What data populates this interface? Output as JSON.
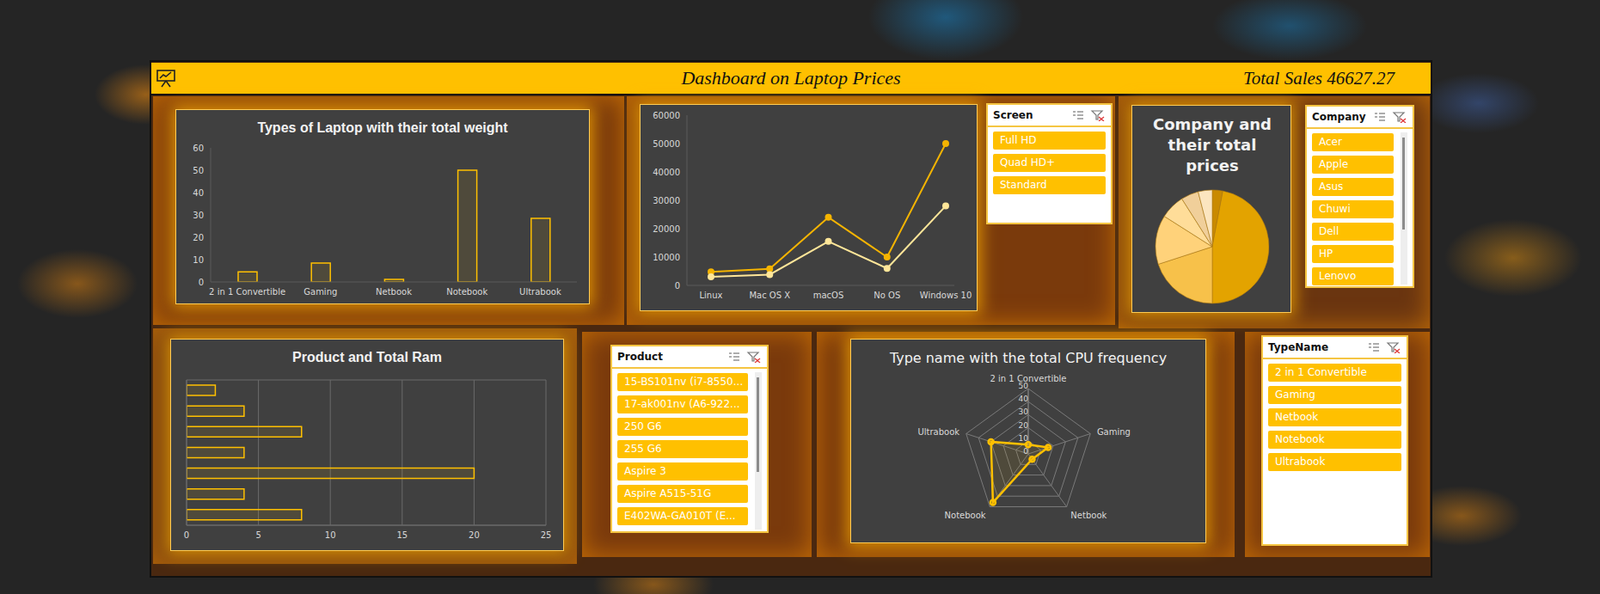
{
  "header": {
    "title": "Dashboard on Laptop Prices",
    "kpi": {
      "label": "Total Sales",
      "value": 46627.27
    }
  },
  "chart_data": [
    {
      "type": "bar",
      "title": "Types of Laptop with their total weight",
      "categories": [
        "2 in 1 Convertible",
        "Gaming",
        "Netbook",
        "Notebook",
        "Ultrabook"
      ],
      "values": [
        4.5,
        8.5,
        1.2,
        50,
        28.5
      ],
      "color": "#ffc000",
      "ylim": [
        0,
        60
      ],
      "yticks": [
        0,
        10,
        20,
        30,
        40,
        50,
        60
      ],
      "grid": false
    },
    {
      "type": "line",
      "categories": [
        "Linux",
        "Mac OS X",
        "macOS",
        "No OS",
        "Windows 10"
      ],
      "series": [
        {
          "color": "#f5b400",
          "values": [
            4800,
            5800,
            24000,
            10000,
            50000
          ]
        },
        {
          "color": "#ffe699",
          "values": [
            3000,
            3800,
            15500,
            6000,
            28000
          ]
        }
      ],
      "ylim": [
        0,
        60000
      ],
      "yticks": [
        0,
        10000,
        20000,
        30000,
        40000,
        50000,
        60000
      ],
      "marker": "circle",
      "grid": false
    },
    {
      "type": "pie",
      "title": "Company and their total prices",
      "values": [
        3,
        47,
        20,
        14,
        7,
        5,
        4
      ],
      "colors": [
        "#c98a00",
        "#e3a300",
        "#f7c14a",
        "#ffd27a",
        "#ffdd99",
        "#f0cf9a",
        "#fbe5bf"
      ]
    },
    {
      "type": "bar",
      "orientation": "horizontal",
      "title": "Product and Total Ram",
      "categories": [
        null,
        null,
        null,
        null,
        null,
        null,
        null
      ],
      "values": [
        2,
        4,
        8,
        4,
        20,
        4,
        8
      ],
      "color": "#ffc000",
      "xlim": [
        0,
        25
      ],
      "xticks": [
        0,
        5,
        10,
        15,
        20,
        25
      ],
      "grid": true,
      "tick_labels": "x"
    },
    {
      "type": "radar",
      "title": "Type name with the total CPU frequency",
      "categories": [
        "2 in 1 Convertible",
        "Gaming",
        "Netbook",
        "Notebook",
        "Ultrabook"
      ],
      "values": [
        7,
        16,
        5,
        46,
        30
      ],
      "color": "#ffc000",
      "ylim": [
        0,
        50
      ],
      "yticks": [
        0,
        10,
        20,
        30,
        40,
        50
      ],
      "marker": "circle",
      "grid": true
    }
  ],
  "slicers": [
    {
      "title": "Screen",
      "items": [
        "Full HD",
        "Quad HD+",
        "Standard"
      ]
    },
    {
      "title": "Company",
      "items": [
        "Acer",
        "Apple",
        "Asus",
        "Chuwi",
        "Dell",
        "HP",
        "Lenovo"
      ]
    },
    {
      "title": "Product",
      "items": [
        "15-BS101nv (i7-8550...",
        "17-ak001nv (A6-922...",
        "250 G6",
        "255 G6",
        "Aspire 3",
        "Aspire A515-51G",
        "E402WA-GA010T (E..."
      ]
    },
    {
      "title": "TypeName",
      "items": [
        "2 in 1 Convertible",
        "Gaming",
        "Netbook",
        "Notebook",
        "Ultrabook"
      ]
    }
  ]
}
